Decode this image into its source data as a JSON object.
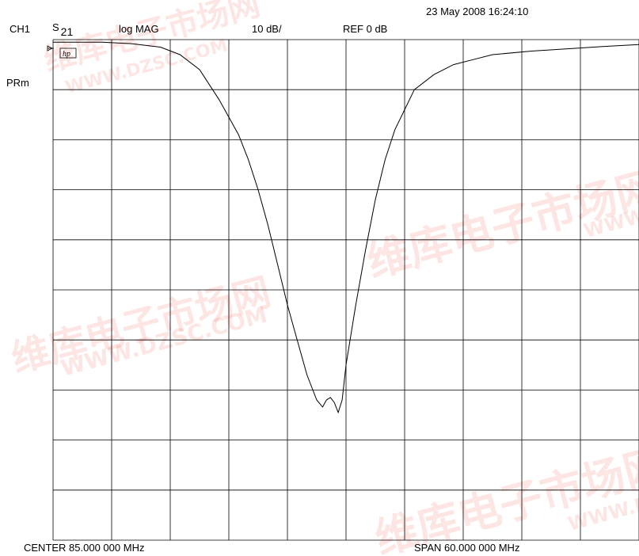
{
  "header": {
    "timestamp": "23 May 2008  16:24:10",
    "channel": "CH1",
    "param_main": "S",
    "param_sub": "21",
    "format": "log MAG",
    "scale": "10 dB/",
    "reference": "REF 0 dB",
    "status": "PRm",
    "hp_badge": "hp"
  },
  "footer": {
    "center": "CENTER  85.000 000 MHz",
    "span": "SPAN  60.000 000 MHz"
  },
  "watermarks": [
    "维库电子市场网",
    "WWW.DZSC.COM"
  ],
  "chart_data": {
    "type": "line",
    "xlabel": "",
    "ylabel": "",
    "x_unit": "MHz",
    "y_unit": "dB",
    "xlim": [
      55,
      115
    ],
    "ylim": [
      -100,
      0
    ],
    "grid": true,
    "grid_divisions_x": 10,
    "grid_divisions_y": 10,
    "trace_color": "#000000",
    "series": [
      {
        "values_x": [
          55,
          60,
          63,
          66,
          68,
          70,
          72,
          74,
          75,
          76,
          77,
          78,
          79,
          80,
          81,
          82,
          82.6,
          83.0,
          83.4,
          83.8,
          84.2,
          84.6,
          85.0,
          86,
          87,
          88,
          89,
          90,
          91,
          92,
          94,
          96,
          98,
          100,
          104,
          108,
          112,
          115
        ],
        "values_y": [
          -0.5,
          -0.5,
          -0.8,
          -1.5,
          -3,
          -6,
          -12,
          -19,
          -24,
          -30,
          -37,
          -45,
          -53,
          -60,
          -67,
          -72,
          -73.4,
          -72.0,
          -71.5,
          -72.5,
          -74.5,
          -72,
          -65,
          -53,
          -42,
          -32,
          -24,
          -18,
          -14,
          -10,
          -7,
          -5,
          -4,
          -3,
          -2.3,
          -1.8,
          -1.3,
          -1.0
        ]
      }
    ]
  }
}
